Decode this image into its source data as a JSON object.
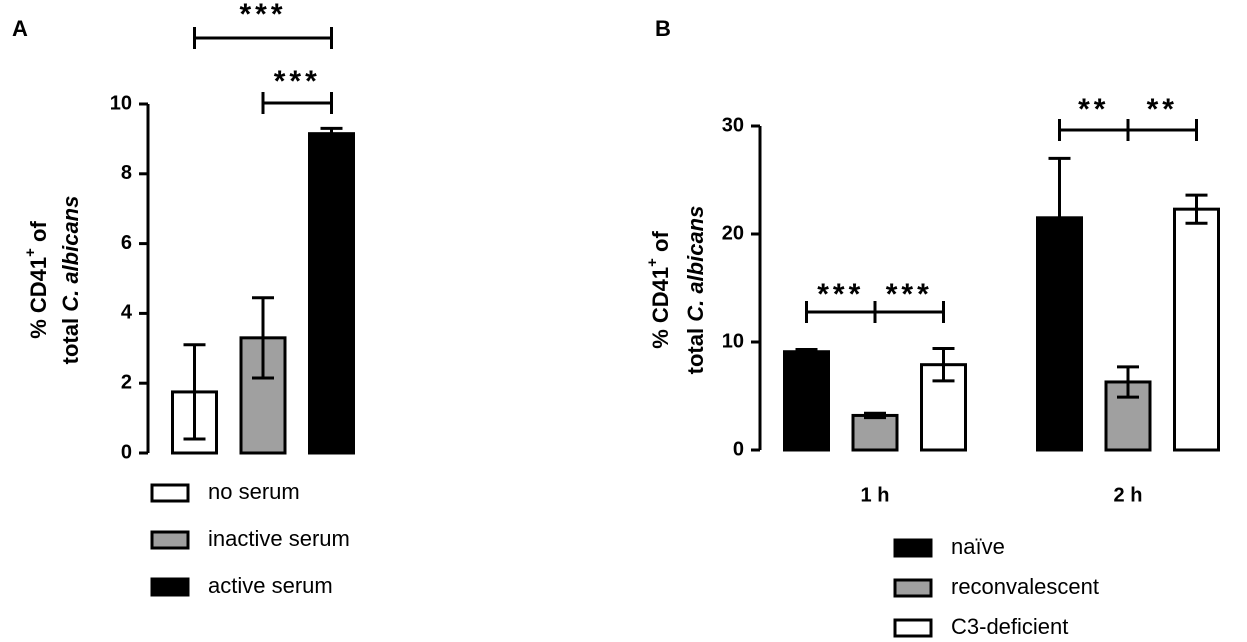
{
  "chart_data": [
    {
      "type": "bar",
      "panel_label": "A",
      "ylabel": {
        "start": "% CD41",
        "sup": "+",
        "end": " of",
        "line2": "total ",
        "line2_italic": "C. albicans"
      },
      "categories": [
        null
      ],
      "series": [
        {
          "name": "no serum",
          "color": "#ffffff",
          "values": [
            1.75
          ],
          "errors": [
            1.35
          ]
        },
        {
          "name": "inactive serum",
          "color": "#a0a0a0",
          "values": [
            3.3
          ],
          "errors": [
            1.15
          ]
        },
        {
          "name": "active serum",
          "color": "#000000",
          "values": [
            9.15
          ],
          "errors": [
            0.15
          ]
        }
      ],
      "ylim": [
        0,
        10
      ],
      "yticks": [
        0,
        2,
        4,
        6,
        8,
        10
      ],
      "annotations": [
        "***",
        "***"
      ]
    },
    {
      "type": "bar",
      "panel_label": "B",
      "ylabel": {
        "start": "% CD41",
        "sup": "+",
        "end": " of",
        "line2": "total ",
        "line2_italic": "C. albicans"
      },
      "categories": [
        "1 h",
        "2 h"
      ],
      "series": [
        {
          "name": "naïve",
          "color": "#000000",
          "values": [
            9.1,
            21.5
          ],
          "errors": [
            0.2,
            5.5
          ]
        },
        {
          "name": "reconvalescent",
          "color": "#a0a0a0",
          "values": [
            3.2,
            6.3
          ],
          "errors": [
            0.2,
            1.4
          ]
        },
        {
          "name": "C3-deficient",
          "color": "#ffffff",
          "values": [
            7.9,
            22.3
          ],
          "errors": [
            1.5,
            1.3
          ]
        }
      ],
      "ylim": [
        0,
        30
      ],
      "yticks": [
        0,
        10,
        20,
        30
      ],
      "annotations": [
        "***",
        "***",
        "**",
        "**"
      ]
    }
  ]
}
